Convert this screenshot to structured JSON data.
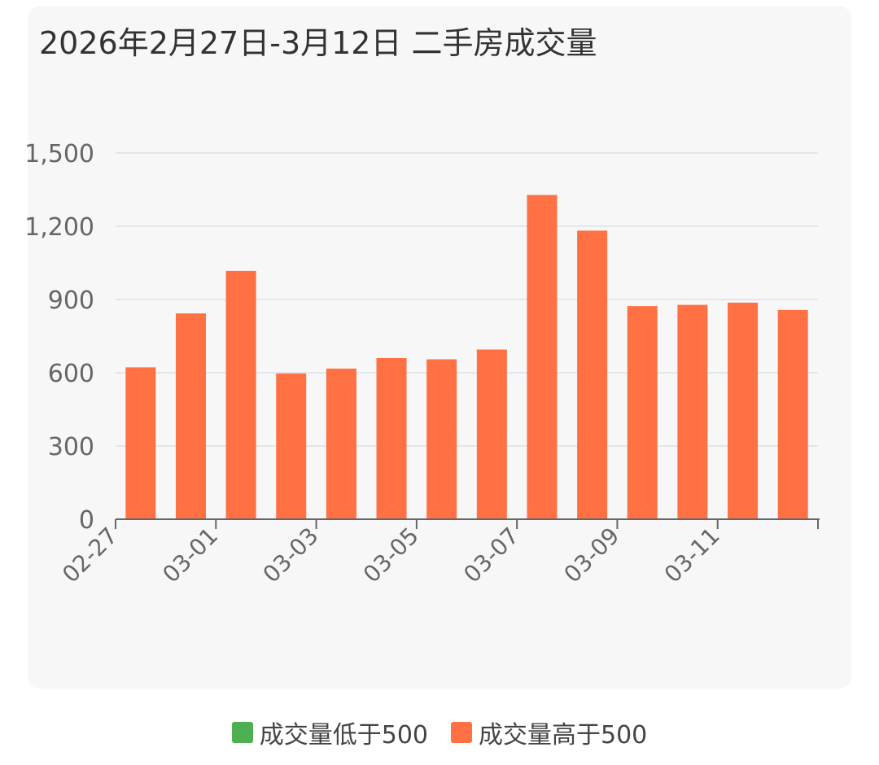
{
  "chart_data": {
    "type": "bar",
    "title": "2026年2月27日-3月12日 二手房成交量",
    "categories": [
      "02-27",
      "02-28",
      "03-01",
      "03-02",
      "03-03",
      "03-04",
      "03-05",
      "03-06",
      "03-07",
      "03-08",
      "03-09",
      "03-10",
      "03-11",
      "03-12"
    ],
    "x_tick_labels": [
      "02-27",
      "03-01",
      "03-03",
      "03-05",
      "03-07",
      "03-09",
      "03-11"
    ],
    "series": [
      {
        "name": "成交量低于500",
        "color": "#4caf50",
        "values": [
          null,
          null,
          null,
          null,
          null,
          null,
          null,
          null,
          null,
          null,
          null,
          null,
          null,
          null
        ]
      },
      {
        "name": "成交量高于500",
        "color": "#ff7043",
        "values": [
          622,
          843,
          1017,
          597,
          617,
          660,
          655,
          695,
          1328,
          1182,
          873,
          878,
          887,
          857
        ]
      }
    ],
    "ylim": [
      0,
      1500
    ],
    "yticks": [
      0,
      300,
      600,
      900,
      1200,
      1500
    ],
    "ytick_labels": [
      "0",
      "300",
      "600",
      "900",
      "1,200",
      "1,500"
    ],
    "grid": true,
    "legend": "bottom-center",
    "xlabel": "",
    "ylabel": ""
  }
}
